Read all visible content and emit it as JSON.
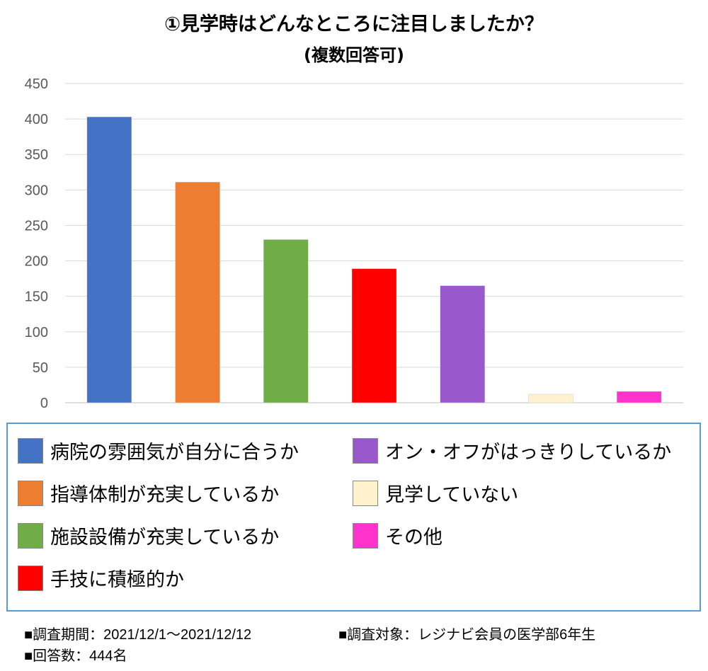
{
  "chart_data": {
    "type": "bar",
    "title": "①見学時はどんなところに注目しましたか？",
    "subtitle": "(複数回答可)",
    "xlabel": "",
    "ylabel": "",
    "ylim": [
      0,
      450
    ],
    "yticks": [
      0,
      50,
      100,
      150,
      200,
      250,
      300,
      350,
      400,
      450
    ],
    "grid": true,
    "legend_placement": "bottom",
    "categories": [
      "病院の雰囲気が自分に合うか",
      "指導体制が充実しているか",
      "施設設備が充実しているか",
      "手技に積極的か",
      "オン・オフがはっきりしているか",
      "見学していない",
      "その他"
    ],
    "values": [
      403,
      311,
      230,
      189,
      165,
      12,
      16
    ],
    "colors": [
      "#4472C4",
      "#ED7D31",
      "#70AD47",
      "#FF0000",
      "#9958CC",
      "#FFF2CC",
      "#FF33CC"
    ]
  },
  "notes": {
    "period": "■調査期間：2021/12/1～2021/12/12",
    "target": "■調査対象：レジナビ会員の医学部6年生",
    "count": "■回答数：444名"
  }
}
